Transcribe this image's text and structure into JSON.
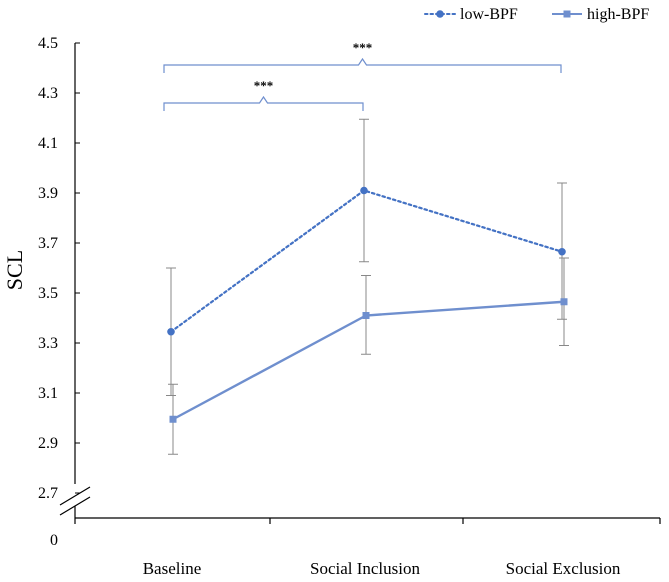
{
  "chart_data": {
    "type": "line",
    "title": "",
    "xlabel": "",
    "ylabel": "SCL",
    "categories": [
      "Baseline",
      "Social Inclusion",
      "Social Exclusion"
    ],
    "y_ticks": [
      "4.5",
      "4.3",
      "4.1",
      "3.9",
      "3.7",
      "3.5",
      "3.3",
      "3.1",
      "2.9",
      "2.7"
    ],
    "y_zero_label": "0",
    "ylim": [
      2.7,
      4.5
    ],
    "axis_break": true,
    "grid": false,
    "legend_position": "top-right",
    "series": [
      {
        "name": "low-BPF",
        "style": "dotted",
        "marker": "circle",
        "color": "#4472c4",
        "values": [
          3.345,
          3.91,
          3.665
        ],
        "error_upper": [
          3.6,
          4.195,
          3.94
        ],
        "error_lower": [
          3.09,
          3.625,
          3.395
        ]
      },
      {
        "name": "high-BPF",
        "style": "solid",
        "marker": "square",
        "color": "#6f8fce",
        "values": [
          2.995,
          3.41,
          3.465
        ],
        "error_upper": [
          3.135,
          3.57,
          3.64
        ],
        "error_lower": [
          2.855,
          3.255,
          3.29
        ]
      }
    ],
    "annotations": [
      {
        "label": "***",
        "from": "Baseline",
        "to": "Social Inclusion"
      },
      {
        "label": "***",
        "from": "Baseline",
        "to": "Social Exclusion"
      }
    ]
  }
}
